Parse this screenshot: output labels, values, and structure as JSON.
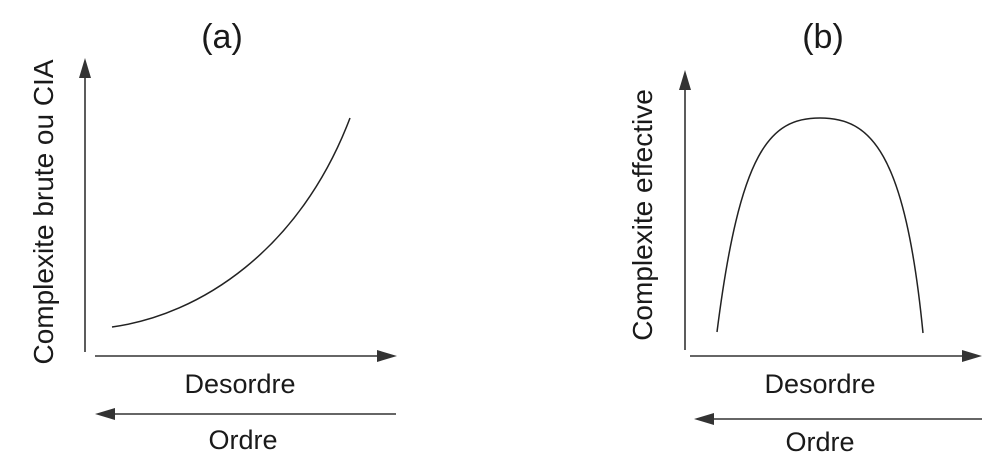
{
  "panels": [
    {
      "id": "a",
      "label": "(a)",
      "y_axis_label": "Complexite brute ou CIA",
      "x_arrow_right_label": "Desordre",
      "x_arrow_left_label": "Ordre",
      "curve_shape": "increasing exponential"
    },
    {
      "id": "b",
      "label": "(b)",
      "y_axis_label": "Complexite effective",
      "x_arrow_right_label": "Desordre",
      "x_arrow_left_label": "Ordre",
      "curve_shape": "inverted parabola (maximum at intermediate disorder)"
    }
  ]
}
